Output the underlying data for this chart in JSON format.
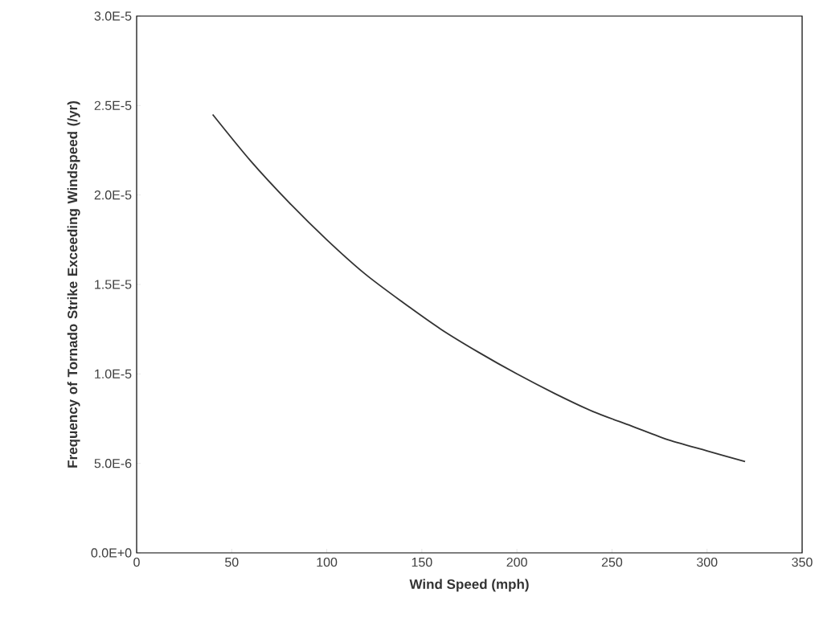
{
  "chart_data": {
    "type": "line",
    "xlabel": "Wind Speed (mph)",
    "ylabel": "Frequency of Tornado Strike Exceeding Windspeed (/yr)",
    "x": [
      40,
      60,
      80,
      100,
      120,
      140,
      160,
      180,
      200,
      220,
      240,
      260,
      280,
      300,
      320
    ],
    "values": [
      2.45e-05,
      2.19e-05,
      1.96e-05,
      1.75e-05,
      1.56e-05,
      1.4e-05,
      1.25e-05,
      1.12e-05,
      1e-05,
      8.9e-06,
      7.9e-06,
      7.1e-06,
      6.3e-06,
      5.7e-06,
      5.1e-06
    ],
    "color": "#333333",
    "line_style": "solid",
    "grid": false,
    "xlim": [
      0,
      350
    ],
    "xticks": [
      0,
      50,
      100,
      150,
      200,
      250,
      300,
      350
    ],
    "ylim": [
      0,
      3e-05
    ],
    "yticks": [
      {
        "value": 0,
        "label": "0.0E+0"
      },
      {
        "value": 5e-06,
        "label": "5.0E-6"
      },
      {
        "value": 1e-05,
        "label": "1.0E-5"
      },
      {
        "value": 1.5e-05,
        "label": "1.5E-5"
      },
      {
        "value": 2e-05,
        "label": "2.0E-5"
      },
      {
        "value": 2.5e-05,
        "label": "2.5E-5"
      },
      {
        "value": 3e-05,
        "label": "3.0E-5"
      }
    ]
  }
}
